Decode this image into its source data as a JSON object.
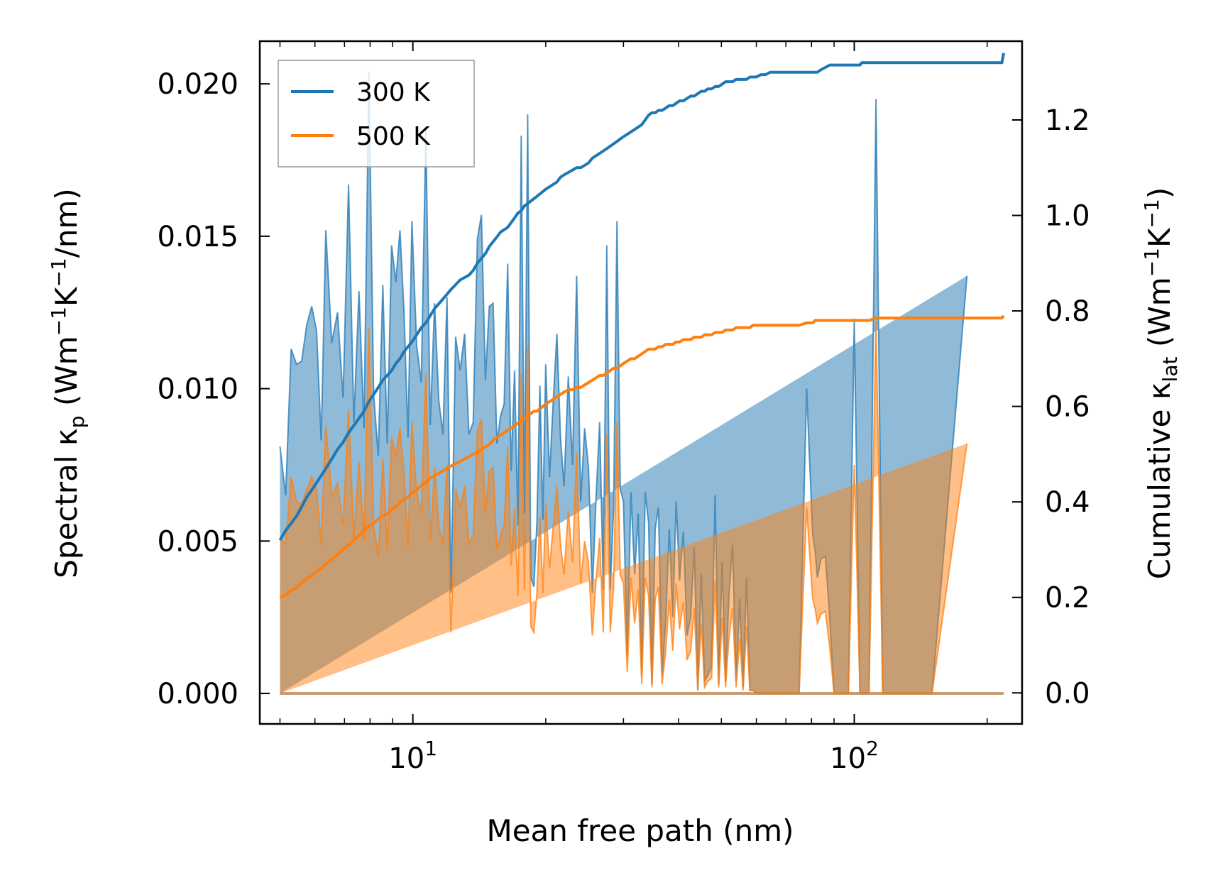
{
  "chart_data": {
    "type": "line",
    "subtype": "dual-axis spectral + cumulative, log-x",
    "xlabel": "Mean free path (nm)",
    "ylabel_left": {
      "prefix": "Spectral ",
      "kappa": "κ",
      "sub": "p",
      "unit_open": " (Wm",
      "exp1": "−1",
      "mid": "K",
      "exp2": "−1",
      "unit_close": "/nm)"
    },
    "ylabel_right": {
      "prefix": "Cumulative ",
      "kappa": "κ",
      "sub": "lat",
      "unit_open": " (Wm",
      "exp1": "−1",
      "mid": "K",
      "exp2": "−1",
      "unit_close": ")"
    },
    "x_scale": "log",
    "xlim": [
      4.5,
      240
    ],
    "ylim_left": [
      -0.001,
      0.0214
    ],
    "ylim_right": [
      -0.065,
      1.365
    ],
    "x_ticks": [
      {
        "value": 10,
        "base": "10",
        "exp": "1"
      },
      {
        "value": 100,
        "base": "10",
        "exp": "2"
      }
    ],
    "y_ticks_left": [
      0.0,
      0.005,
      0.01,
      0.015,
      0.02
    ],
    "y_tick_labels_left": [
      "0.000",
      "0.005",
      "0.010",
      "0.015",
      "0.020"
    ],
    "y_ticks_right": [
      0.0,
      0.2,
      0.4,
      0.6,
      0.8,
      1.0,
      1.2
    ],
    "y_tick_labels_right": [
      "0.0",
      "0.2",
      "0.4",
      "0.6",
      "0.8",
      "1.0",
      "1.2"
    ],
    "legend": {
      "position": "top-left",
      "entries": [
        "300 K",
        "500 K"
      ]
    },
    "colors": {
      "300 K": "#1f77b4",
      "500 K": "#ff7f0e"
    },
    "series": [
      {
        "name": "300 K",
        "axis": "left",
        "style": "filled spectral",
        "x": [
          5,
          5.15,
          5.3,
          5.45,
          5.6,
          5.75,
          5.9,
          6.05,
          6.2,
          6.35,
          6.55,
          6.75,
          6.95,
          7.15,
          7.35,
          7.55,
          7.75,
          7.95,
          8.15,
          8.35,
          8.55,
          8.75,
          8.95,
          9.15,
          9.35,
          9.55,
          9.75,
          9.95,
          10.2,
          10.45,
          10.7,
          10.95,
          11.2,
          11.45,
          11.7,
          11.95,
          12.2,
          12.5,
          12.8,
          13.1,
          13.4,
          13.7,
          14.0,
          14.3,
          14.6,
          14.9,
          15.2,
          15.5,
          15.8,
          16.1,
          16.4,
          16.7,
          17.0,
          17.3,
          17.6,
          17.9,
          18.2,
          18.5,
          18.8,
          19.1,
          19.4,
          19.7,
          20.0,
          20.4,
          20.8,
          21.2,
          21.6,
          22.0,
          22.5,
          23.0,
          23.5,
          24.0,
          24.5,
          25.0,
          25.5,
          26.0,
          26.5,
          27.0,
          27.5,
          28.0,
          28.5,
          29.0,
          29.5,
          30.0,
          30.6,
          31.2,
          31.8,
          32.4,
          33.0,
          33.6,
          34.2,
          34.8,
          35.4,
          36.0,
          36.7,
          37.4,
          38.1,
          38.8,
          39.5,
          40.2,
          41.0,
          41.8,
          42.6,
          43.4,
          44.2,
          45.0,
          45.8,
          46.6,
          47.5,
          48.4,
          49.3,
          50.2,
          51.1,
          52.0,
          53.0,
          54.0,
          55.0,
          56.0,
          57.0,
          58.0,
          59.0,
          60.0,
          61.5,
          63.0,
          64.5,
          66.0,
          67.5,
          69.0,
          70.5,
          72.0,
          75.0,
          78.0,
          80.5,
          81.5,
          82.5,
          84.0,
          86.0,
          88.0,
          90.0,
          92.0,
          94.0,
          97.0,
          100.0,
          103.0,
          104.0,
          105.0,
          106.0,
          108.0,
          112.0,
          116.0,
          118.0,
          119.0,
          120.0,
          122.0,
          150.0,
          180.0,
          210.0,
          214.0,
          216.0,
          218.0
        ],
        "spectral": [
          0.0081,
          0.0065,
          0.0113,
          0.0108,
          0.0109,
          0.0121,
          0.0127,
          0.0119,
          0.0083,
          0.0152,
          0.0115,
          0.0125,
          0.0097,
          0.0167,
          0.0089,
          0.0132,
          0.0087,
          0.0204,
          0.0098,
          0.0078,
          0.0134,
          0.0082,
          0.0147,
          0.0135,
          0.0152,
          0.0125,
          0.0084,
          0.0155,
          0.0114,
          0.0102,
          0.0185,
          0.0088,
          0.0128,
          0.0096,
          0.0085,
          0.013,
          0.0033,
          0.0117,
          0.0106,
          0.0118,
          0.0085,
          0.0089,
          0.0149,
          0.0157,
          0.0103,
          0.0127,
          0.0128,
          0.0082,
          0.0091,
          0.0095,
          0.0141,
          0.0073,
          0.0106,
          0.0055,
          0.0183,
          0.0059,
          0.019,
          0.0038,
          0.0035,
          0.0056,
          0.0101,
          0.0057,
          0.0108,
          0.0071,
          0.0096,
          0.0118,
          0.0084,
          0.0068,
          0.0104,
          0.0075,
          0.0137,
          0.0063,
          0.0087,
          0.0074,
          0.0033,
          0.0064,
          0.0089,
          0.0034,
          0.0147,
          0.0034,
          0.0061,
          0.0155,
          0.0067,
          0.0063,
          0.0012,
          0.0066,
          0.0039,
          0.0059,
          0.0006,
          0.0066,
          0.0056,
          0.0003,
          0.0054,
          0.0061,
          0.0006,
          0.0024,
          0.0054,
          0.0025,
          0.0063,
          0.0037,
          0.0053,
          0.0019,
          0.0025,
          0.0048,
          0.0001,
          0.0039,
          0.0004,
          0.0006,
          0.0009,
          0.0065,
          0.0003,
          0.0043,
          0.0004,
          0.0032,
          0.0049,
          0.0004,
          0.0031,
          0.0002,
          0.0038,
          0.0001,
          0.0001,
          0.0,
          0.0,
          0.0,
          0.0,
          0.0,
          0.0,
          0.0,
          0.0,
          0.0,
          0.0,
          0.01,
          0.0052,
          0.0047,
          0.0038,
          0.0044,
          0.0045,
          0.0025,
          0.0,
          0.0,
          0.0,
          0.0,
          0.0123,
          0.0,
          0.0,
          0.0,
          0.0,
          0.0,
          0.0195,
          0.0,
          0.0,
          0.0,
          0.0,
          0.0,
          0.0,
          0.0137
        ],
        "cumulative": [
          0.32,
          0.34,
          0.355,
          0.37,
          0.39,
          0.41,
          0.425,
          0.44,
          0.455,
          0.47,
          0.49,
          0.51,
          0.525,
          0.545,
          0.56,
          0.575,
          0.59,
          0.61,
          0.625,
          0.64,
          0.655,
          0.665,
          0.675,
          0.69,
          0.7,
          0.715,
          0.725,
          0.735,
          0.75,
          0.765,
          0.775,
          0.79,
          0.805,
          0.815,
          0.825,
          0.835,
          0.845,
          0.855,
          0.865,
          0.87,
          0.875,
          0.885,
          0.9,
          0.91,
          0.92,
          0.935,
          0.945,
          0.955,
          0.965,
          0.97,
          0.975,
          0.985,
          0.995,
          1.005,
          1.01,
          1.02,
          1.025,
          1.03,
          1.035,
          1.04,
          1.045,
          1.05,
          1.055,
          1.06,
          1.065,
          1.07,
          1.08,
          1.085,
          1.09,
          1.095,
          1.1,
          1.1,
          1.105,
          1.11,
          1.12,
          1.125,
          1.13,
          1.135,
          1.14,
          1.145,
          1.15,
          1.155,
          1.16,
          1.165,
          1.17,
          1.175,
          1.18,
          1.185,
          1.19,
          1.2,
          1.21,
          1.215,
          1.215,
          1.22,
          1.22,
          1.225,
          1.23,
          1.23,
          1.235,
          1.24,
          1.24,
          1.245,
          1.25,
          1.25,
          1.255,
          1.26,
          1.26,
          1.265,
          1.265,
          1.27,
          1.27,
          1.275,
          1.28,
          1.28,
          1.28,
          1.285,
          1.285,
          1.285,
          1.285,
          1.29,
          1.29,
          1.29,
          1.295,
          1.295,
          1.3,
          1.3,
          1.3,
          1.3,
          1.3,
          1.3,
          1.3,
          1.3,
          1.3,
          1.3,
          1.3,
          1.305,
          1.31,
          1.315,
          1.315,
          1.315,
          1.315,
          1.315,
          1.315,
          1.315,
          1.32,
          1.32,
          1.32,
          1.32,
          1.32,
          1.32,
          1.32,
          1.32,
          1.32,
          1.32,
          1.32,
          1.32,
          1.32,
          1.32,
          1.32,
          1.34
        ]
      },
      {
        "name": "500 K",
        "axis": "left",
        "style": "filled spectral",
        "x": [
          5,
          5.15,
          5.3,
          5.45,
          5.6,
          5.75,
          5.9,
          6.05,
          6.2,
          6.35,
          6.55,
          6.75,
          6.95,
          7.15,
          7.35,
          7.55,
          7.75,
          7.95,
          8.15,
          8.35,
          8.55,
          8.75,
          8.95,
          9.15,
          9.35,
          9.55,
          9.75,
          9.95,
          10.2,
          10.45,
          10.7,
          10.95,
          11.2,
          11.45,
          11.7,
          11.95,
          12.2,
          12.5,
          12.8,
          13.1,
          13.4,
          13.7,
          14.0,
          14.3,
          14.6,
          14.9,
          15.2,
          15.5,
          15.8,
          16.1,
          16.4,
          16.7,
          17.0,
          17.3,
          17.6,
          17.9,
          18.2,
          18.5,
          18.8,
          19.1,
          19.4,
          19.7,
          20.0,
          20.4,
          20.8,
          21.2,
          21.6,
          22.0,
          22.5,
          23.0,
          23.5,
          24.0,
          24.5,
          25.0,
          25.5,
          26.0,
          26.5,
          27.0,
          27.5,
          28.0,
          28.5,
          29.0,
          29.5,
          30.0,
          30.6,
          31.2,
          31.8,
          32.4,
          33.0,
          33.6,
          34.2,
          34.8,
          35.4,
          36.0,
          36.7,
          37.4,
          38.1,
          38.8,
          39.5,
          40.2,
          41.0,
          41.8,
          42.6,
          43.4,
          44.2,
          45.0,
          45.8,
          46.6,
          47.5,
          48.4,
          49.3,
          50.2,
          51.1,
          52.0,
          53.0,
          54.0,
          55.0,
          56.0,
          57.0,
          58.0,
          59.0,
          60.0,
          61.5,
          63.0,
          64.5,
          66.0,
          67.5,
          69.0,
          70.5,
          72.0,
          75.0,
          78.0,
          80.5,
          81.5,
          82.5,
          84.0,
          86.0,
          88.0,
          90.0,
          92.0,
          94.0,
          97.0,
          100.0,
          103.0,
          104.0,
          105.0,
          106.0,
          108.0,
          112.0,
          116.0,
          118.0,
          119.0,
          120.0,
          122.0,
          150.0,
          180.0,
          210.0,
          214.0,
          216.0,
          218.0
        ],
        "spectral": [
          0.0051,
          0.0049,
          0.0071,
          0.0063,
          0.0062,
          0.0067,
          0.0071,
          0.0067,
          0.0049,
          0.0088,
          0.0065,
          0.0069,
          0.0055,
          0.0093,
          0.0051,
          0.0076,
          0.005,
          0.012,
          0.0055,
          0.0045,
          0.0077,
          0.0047,
          0.0084,
          0.0078,
          0.0087,
          0.0072,
          0.0048,
          0.0089,
          0.0066,
          0.0059,
          0.0105,
          0.005,
          0.0074,
          0.0055,
          0.0049,
          0.0075,
          0.002,
          0.0067,
          0.0061,
          0.0068,
          0.0049,
          0.0052,
          0.0086,
          0.009,
          0.0059,
          0.0073,
          0.0074,
          0.0047,
          0.0052,
          0.0055,
          0.0081,
          0.0042,
          0.0061,
          0.0032,
          0.0105,
          0.0034,
          0.0114,
          0.0022,
          0.002,
          0.0033,
          0.0058,
          0.0033,
          0.0062,
          0.0041,
          0.0055,
          0.0068,
          0.0049,
          0.0039,
          0.006,
          0.0043,
          0.0079,
          0.0036,
          0.005,
          0.0043,
          0.0019,
          0.0037,
          0.0051,
          0.002,
          0.0085,
          0.002,
          0.0035,
          0.0089,
          0.0039,
          0.0036,
          0.0007,
          0.0038,
          0.0023,
          0.0034,
          0.0003,
          0.0038,
          0.0032,
          0.0002,
          0.0031,
          0.0035,
          0.0003,
          0.0014,
          0.0031,
          0.0014,
          0.0036,
          0.0021,
          0.003,
          0.0011,
          0.0014,
          0.0028,
          0.0001,
          0.0023,
          0.0002,
          0.0004,
          0.0005,
          0.0037,
          0.0002,
          0.0025,
          0.0002,
          0.0018,
          0.0028,
          0.0002,
          0.0018,
          0.0001,
          0.0022,
          0.0001,
          0.0001,
          0.0,
          0.0,
          0.0,
          0.0,
          0.0,
          0.0,
          0.0,
          0.0,
          0.0,
          0.0,
          0.0061,
          0.0031,
          0.0028,
          0.0023,
          0.0026,
          0.0027,
          0.0015,
          0.0,
          0.0,
          0.0,
          0.0,
          0.0075,
          0.0,
          0.0,
          0.0,
          0.0,
          0.0,
          0.0122,
          0.0,
          0.0,
          0.0,
          0.0,
          0.0,
          0.0,
          0.0082
        ],
        "cumulative": [
          0.2,
          0.205,
          0.215,
          0.22,
          0.23,
          0.24,
          0.245,
          0.255,
          0.26,
          0.27,
          0.28,
          0.29,
          0.3,
          0.31,
          0.32,
          0.33,
          0.34,
          0.35,
          0.355,
          0.365,
          0.37,
          0.375,
          0.385,
          0.39,
          0.4,
          0.405,
          0.41,
          0.42,
          0.425,
          0.435,
          0.44,
          0.45,
          0.455,
          0.46,
          0.465,
          0.47,
          0.475,
          0.48,
          0.485,
          0.49,
          0.495,
          0.5,
          0.505,
          0.51,
          0.515,
          0.52,
          0.53,
          0.535,
          0.54,
          0.545,
          0.55,
          0.555,
          0.56,
          0.565,
          0.57,
          0.575,
          0.58,
          0.585,
          0.59,
          0.59,
          0.595,
          0.6,
          0.605,
          0.61,
          0.615,
          0.62,
          0.625,
          0.63,
          0.635,
          0.635,
          0.64,
          0.64,
          0.645,
          0.65,
          0.655,
          0.66,
          0.665,
          0.665,
          0.67,
          0.675,
          0.68,
          0.68,
          0.685,
          0.69,
          0.695,
          0.7,
          0.7,
          0.705,
          0.71,
          0.715,
          0.72,
          0.72,
          0.72,
          0.725,
          0.725,
          0.73,
          0.73,
          0.73,
          0.735,
          0.735,
          0.74,
          0.74,
          0.74,
          0.745,
          0.745,
          0.745,
          0.75,
          0.75,
          0.75,
          0.755,
          0.755,
          0.755,
          0.76,
          0.76,
          0.76,
          0.765,
          0.765,
          0.765,
          0.765,
          0.765,
          0.77,
          0.77,
          0.77,
          0.77,
          0.77,
          0.77,
          0.77,
          0.77,
          0.77,
          0.77,
          0.77,
          0.775,
          0.775,
          0.78,
          0.78,
          0.78,
          0.78,
          0.78,
          0.78,
          0.78,
          0.78,
          0.78,
          0.78,
          0.78,
          0.78,
          0.78,
          0.78,
          0.78,
          0.785,
          0.785,
          0.785,
          0.785,
          0.785,
          0.785,
          0.785,
          0.785,
          0.785,
          0.785,
          0.785,
          0.79
        ]
      }
    ]
  }
}
